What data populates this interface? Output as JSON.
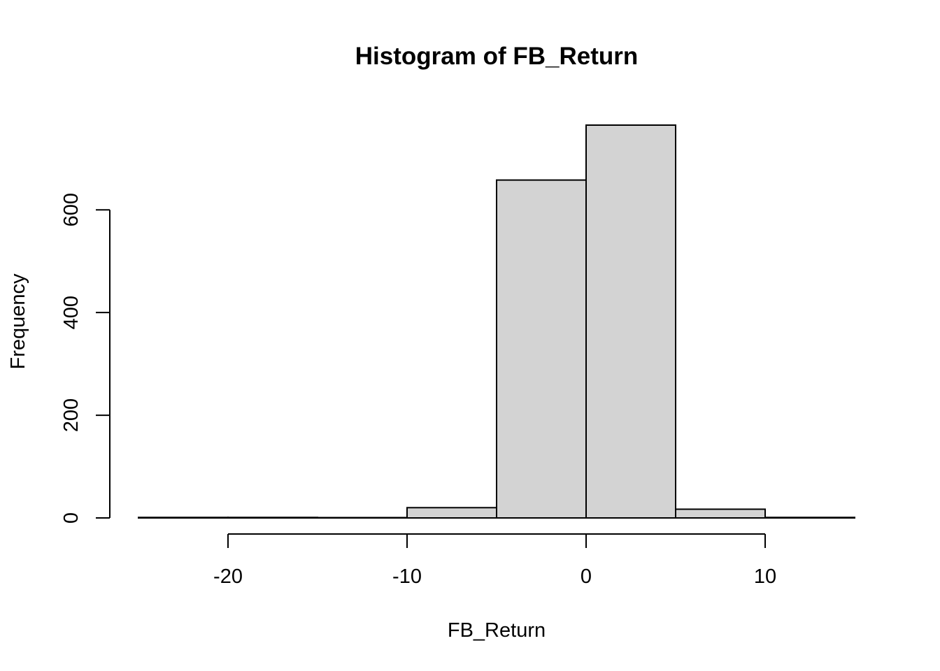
{
  "chart_data": {
    "type": "bar",
    "title": "Histogram of FB_Return",
    "xlabel": "FB_Return",
    "ylabel": "Frequency",
    "bins": [
      {
        "x0": -25,
        "x1": -20,
        "count": 1
      },
      {
        "x0": -20,
        "x1": -15,
        "count": 1
      },
      {
        "x0": -15,
        "x1": -10,
        "count": 0
      },
      {
        "x0": -10,
        "x1": -5,
        "count": 20
      },
      {
        "x0": -5,
        "x1": 0,
        "count": 658
      },
      {
        "x0": 0,
        "x1": 5,
        "count": 765
      },
      {
        "x0": 5,
        "x1": 10,
        "count": 17
      },
      {
        "x0": 10,
        "x1": 15,
        "count": 1
      }
    ],
    "x_ticks": [
      -20,
      -10,
      0,
      10
    ],
    "x_tick_labels": [
      "-20",
      "-10",
      "0",
      "10"
    ],
    "y_ticks": [
      0,
      200,
      400,
      600
    ],
    "y_tick_labels": [
      "0",
      "200",
      "400",
      "600"
    ],
    "xlim": [
      -25,
      15
    ],
    "ylim": [
      0,
      765
    ],
    "bar_color": "#d3d3d3",
    "grid": false
  }
}
